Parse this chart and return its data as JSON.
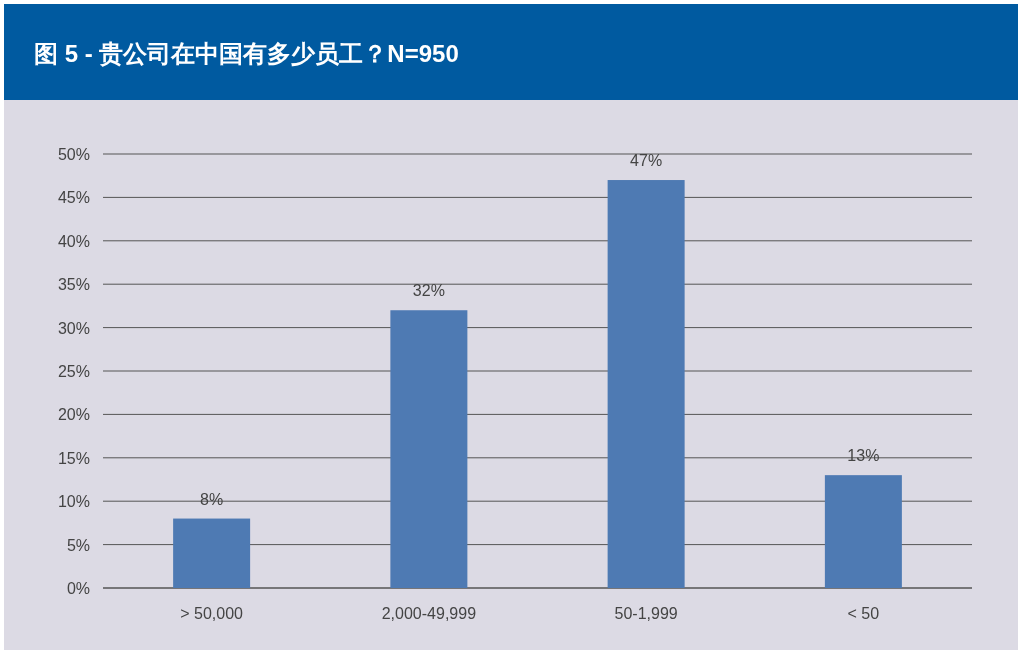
{
  "chart_data": {
    "type": "bar",
    "title": "图 5 - 贵公司在中国有多少员工？N=950",
    "categories": [
      "> 50,000",
      "2,000-49,999",
      "50-1,999",
      "< 50"
    ],
    "values": [
      8,
      32,
      47,
      13
    ],
    "color": "#4e7ab3",
    "value_labels": [
      "8%",
      "32%",
      "47%",
      "13%"
    ],
    "ylim": [
      0,
      50
    ],
    "yticks": [
      {
        "value": 0,
        "label": "0%"
      },
      {
        "value": 5,
        "label": "5%"
      },
      {
        "value": 10,
        "label": "10%"
      },
      {
        "value": 15,
        "label": "15%"
      },
      {
        "value": 20,
        "label": "20%"
      },
      {
        "value": 25,
        "label": "25%"
      },
      {
        "value": 30,
        "label": "30%"
      },
      {
        "value": 35,
        "label": "35%"
      },
      {
        "value": 40,
        "label": "40%"
      },
      {
        "value": 45,
        "label": "45%"
      },
      {
        "value": 50,
        "label": "50%"
      }
    ],
    "grid": "y"
  }
}
